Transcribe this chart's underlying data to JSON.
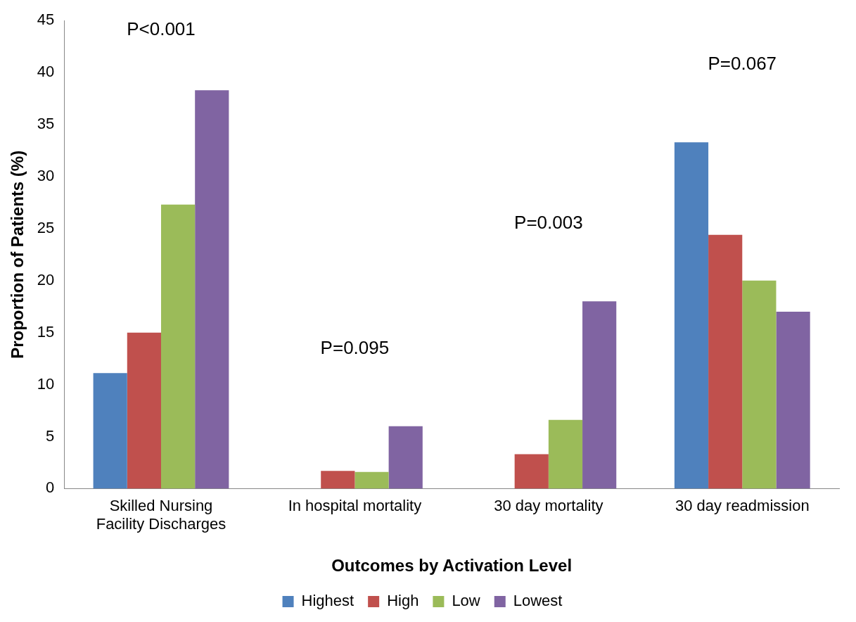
{
  "chart_data": {
    "type": "bar",
    "xlabel": "Outcomes by Activation Level",
    "ylabel": "Proportion of Patients (%)",
    "categories": [
      "Skilled Nursing Facility Discharges",
      "In hospital mortality",
      "30 day mortality",
      "30 day readmission"
    ],
    "series": [
      {
        "name": "Highest",
        "color": "#4f81bd",
        "values": [
          11.1,
          0,
          0,
          33.3
        ]
      },
      {
        "name": "High",
        "color": "#c0504d",
        "values": [
          15.0,
          1.7,
          3.3,
          24.4
        ]
      },
      {
        "name": "Low",
        "color": "#9bbb59",
        "values": [
          27.3,
          1.6,
          6.6,
          20.0
        ]
      },
      {
        "name": "Lowest",
        "color": "#8064a2",
        "values": [
          38.3,
          6.0,
          18.0,
          17.0
        ]
      }
    ],
    "ylim": [
      0,
      45
    ],
    "yticks": [
      0,
      5,
      10,
      15,
      20,
      25,
      30,
      35,
      40,
      45
    ],
    "grid": false,
    "legend": "bottom",
    "annotations": [
      "P<0.001",
      "P=0.095",
      "P=0.003",
      "P=0.067"
    ]
  }
}
